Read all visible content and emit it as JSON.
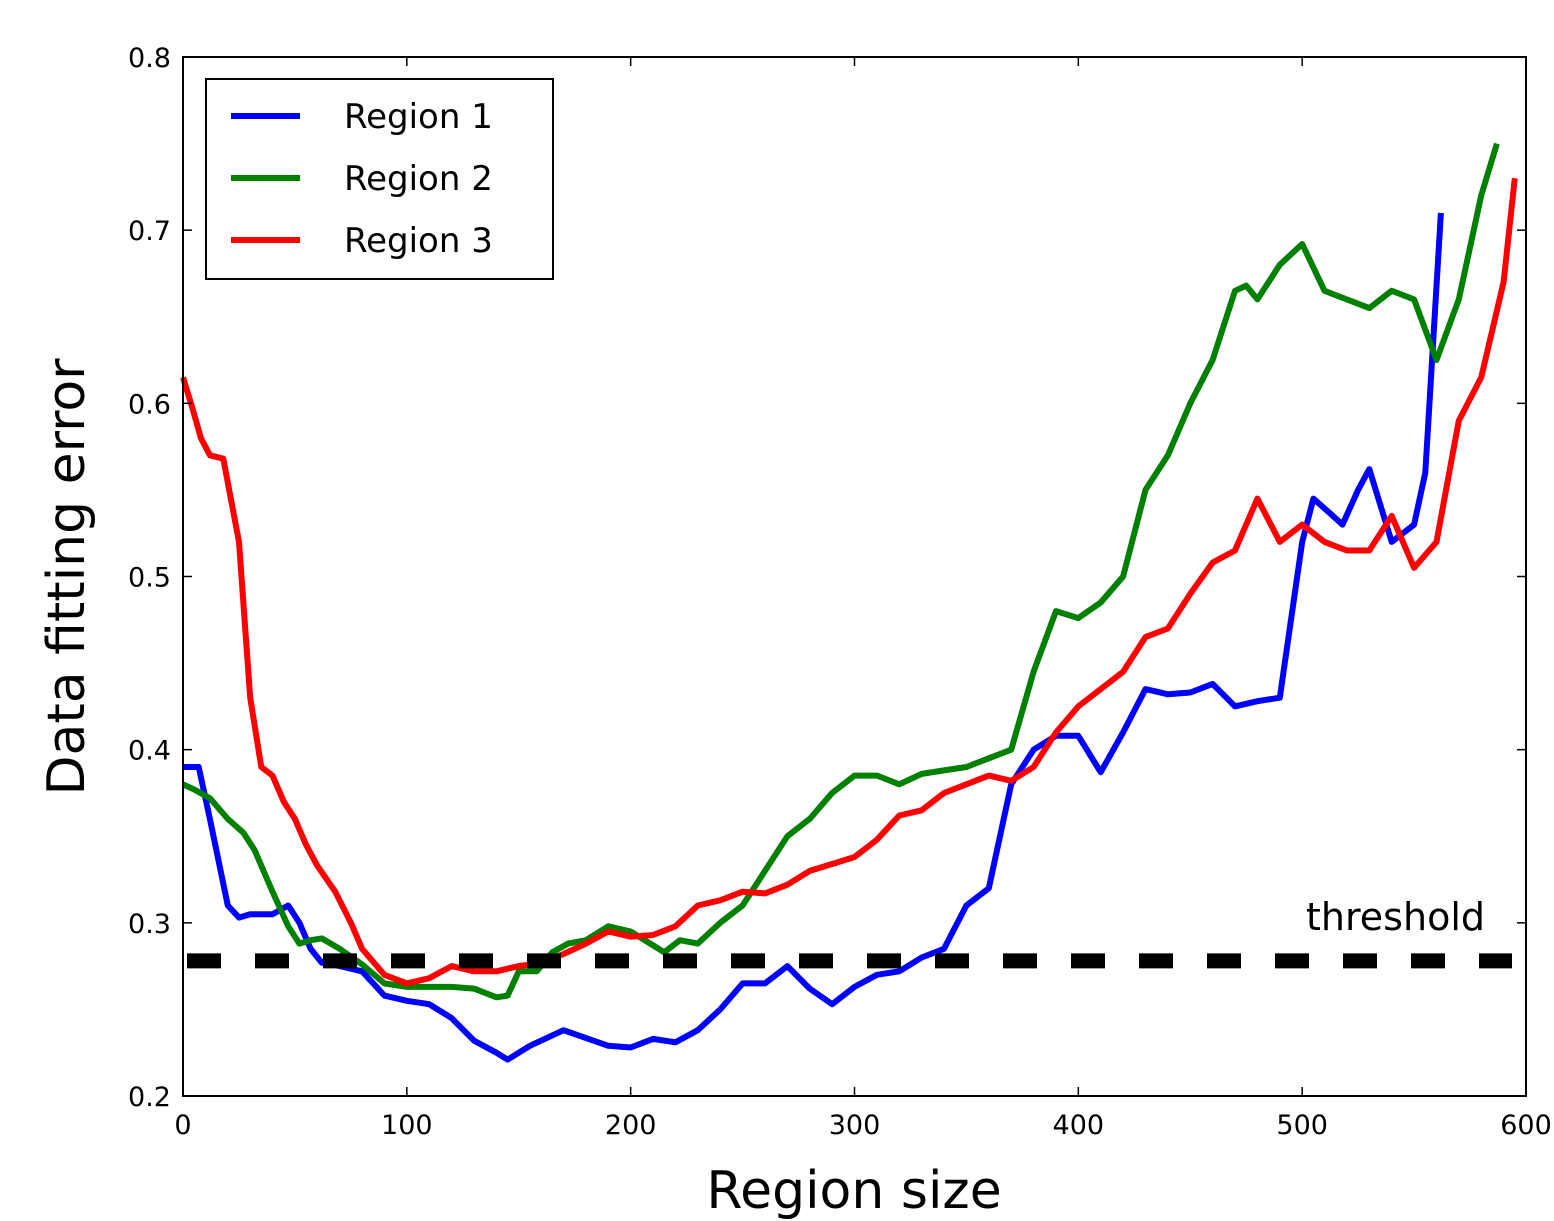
{
  "chart_data": {
    "type": "line",
    "xlabel": "Region size",
    "ylabel": "Data fitting error",
    "xlim": [
      0,
      600
    ],
    "ylim": [
      0.2,
      0.8
    ],
    "xticks": [
      0,
      100,
      200,
      300,
      400,
      500,
      600
    ],
    "yticks": [
      0.2,
      0.3,
      0.4,
      0.5,
      0.6,
      0.7,
      0.8
    ],
    "xtick_labels": [
      "0",
      "100",
      "200",
      "300",
      "400",
      "500",
      "600"
    ],
    "ytick_labels": [
      "0.2",
      "0.3",
      "0.4",
      "0.5",
      "0.6",
      "0.7",
      "0.8"
    ],
    "grid": false,
    "legend_position": "top-left",
    "series": [
      {
        "name": "Region 1",
        "color": "#0000ff",
        "x": [
          0,
          7,
          12,
          20,
          25,
          30,
          40,
          47,
          52,
          57,
          62,
          70,
          80,
          90,
          100,
          110,
          120,
          130,
          140,
          145,
          155,
          170,
          190,
          200,
          210,
          220,
          230,
          240,
          250,
          260,
          270,
          280,
          290,
          300,
          310,
          320,
          330,
          340,
          350,
          360,
          370,
          380,
          390,
          400,
          410,
          420,
          430,
          440,
          450,
          460,
          470,
          480,
          490,
          500,
          505,
          512,
          518,
          525,
          530,
          540,
          550,
          555,
          562
        ],
        "y": [
          0.39,
          0.39,
          0.36,
          0.31,
          0.303,
          0.305,
          0.305,
          0.31,
          0.3,
          0.285,
          0.277,
          0.275,
          0.272,
          0.258,
          0.255,
          0.253,
          0.245,
          0.232,
          0.225,
          0.221,
          0.229,
          0.238,
          0.229,
          0.228,
          0.233,
          0.231,
          0.238,
          0.25,
          0.265,
          0.265,
          0.275,
          0.262,
          0.253,
          0.263,
          0.27,
          0.272,
          0.28,
          0.285,
          0.31,
          0.32,
          0.38,
          0.4,
          0.408,
          0.408,
          0.387,
          0.41,
          0.435,
          0.432,
          0.433,
          0.438,
          0.425,
          0.428,
          0.43,
          0.52,
          0.545,
          0.537,
          0.53,
          0.55,
          0.562,
          0.52,
          0.53,
          0.56,
          0.71
        ]
      },
      {
        "name": "Region 2",
        "color": "#008000",
        "x": [
          0,
          5,
          12,
          20,
          27,
          32,
          40,
          47,
          52,
          57,
          62,
          70,
          80,
          90,
          100,
          110,
          120,
          130,
          140,
          145,
          150,
          158,
          165,
          172,
          180,
          190,
          200,
          210,
          215,
          222,
          230,
          240,
          250,
          260,
          270,
          280,
          290,
          300,
          310,
          320,
          330,
          340,
          350,
          360,
          370,
          380,
          390,
          400,
          410,
          420,
          430,
          440,
          450,
          460,
          470,
          475,
          480,
          490,
          500,
          510,
          520,
          530,
          540,
          550,
          560,
          570,
          580,
          587
        ],
        "y": [
          0.38,
          0.377,
          0.372,
          0.36,
          0.352,
          0.342,
          0.318,
          0.298,
          0.288,
          0.29,
          0.291,
          0.285,
          0.276,
          0.265,
          0.263,
          0.263,
          0.263,
          0.262,
          0.257,
          0.258,
          0.272,
          0.272,
          0.283,
          0.288,
          0.29,
          0.298,
          0.295,
          0.287,
          0.283,
          0.29,
          0.288,
          0.3,
          0.31,
          0.33,
          0.35,
          0.36,
          0.375,
          0.385,
          0.385,
          0.38,
          0.386,
          0.388,
          0.39,
          0.395,
          0.4,
          0.445,
          0.48,
          0.476,
          0.485,
          0.5,
          0.55,
          0.57,
          0.6,
          0.625,
          0.665,
          0.668,
          0.66,
          0.68,
          0.692,
          0.665,
          0.66,
          0.655,
          0.665,
          0.66,
          0.625,
          0.66,
          0.72,
          0.75
        ]
      },
      {
        "name": "Region 3",
        "color": "#ff0000",
        "x": [
          0,
          4,
          8,
          12,
          18,
          25,
          30,
          35,
          40,
          45,
          50,
          55,
          60,
          68,
          75,
          80,
          90,
          100,
          110,
          120,
          130,
          140,
          150,
          160,
          170,
          180,
          190,
          200,
          210,
          220,
          230,
          240,
          250,
          260,
          270,
          280,
          290,
          300,
          310,
          320,
          330,
          340,
          350,
          360,
          370,
          380,
          390,
          400,
          410,
          420,
          430,
          440,
          450,
          460,
          470,
          480,
          490,
          500,
          510,
          520,
          530,
          540,
          550,
          560,
          570,
          580,
          590,
          595
        ],
        "y": [
          0.615,
          0.598,
          0.58,
          0.57,
          0.568,
          0.52,
          0.43,
          0.39,
          0.385,
          0.37,
          0.36,
          0.345,
          0.333,
          0.318,
          0.3,
          0.285,
          0.27,
          0.265,
          0.268,
          0.275,
          0.272,
          0.272,
          0.275,
          0.277,
          0.282,
          0.288,
          0.295,
          0.292,
          0.293,
          0.298,
          0.31,
          0.313,
          0.318,
          0.317,
          0.322,
          0.33,
          0.334,
          0.338,
          0.348,
          0.362,
          0.365,
          0.375,
          0.38,
          0.385,
          0.382,
          0.39,
          0.41,
          0.425,
          0.435,
          0.445,
          0.465,
          0.47,
          0.49,
          0.508,
          0.515,
          0.545,
          0.52,
          0.53,
          0.52,
          0.515,
          0.515,
          0.535,
          0.505,
          0.52,
          0.59,
          0.615,
          0.67,
          0.73
        ]
      }
    ],
    "threshold": {
      "label": "threshold",
      "value": 0.278,
      "color": "#000000",
      "style": "dashed"
    }
  }
}
